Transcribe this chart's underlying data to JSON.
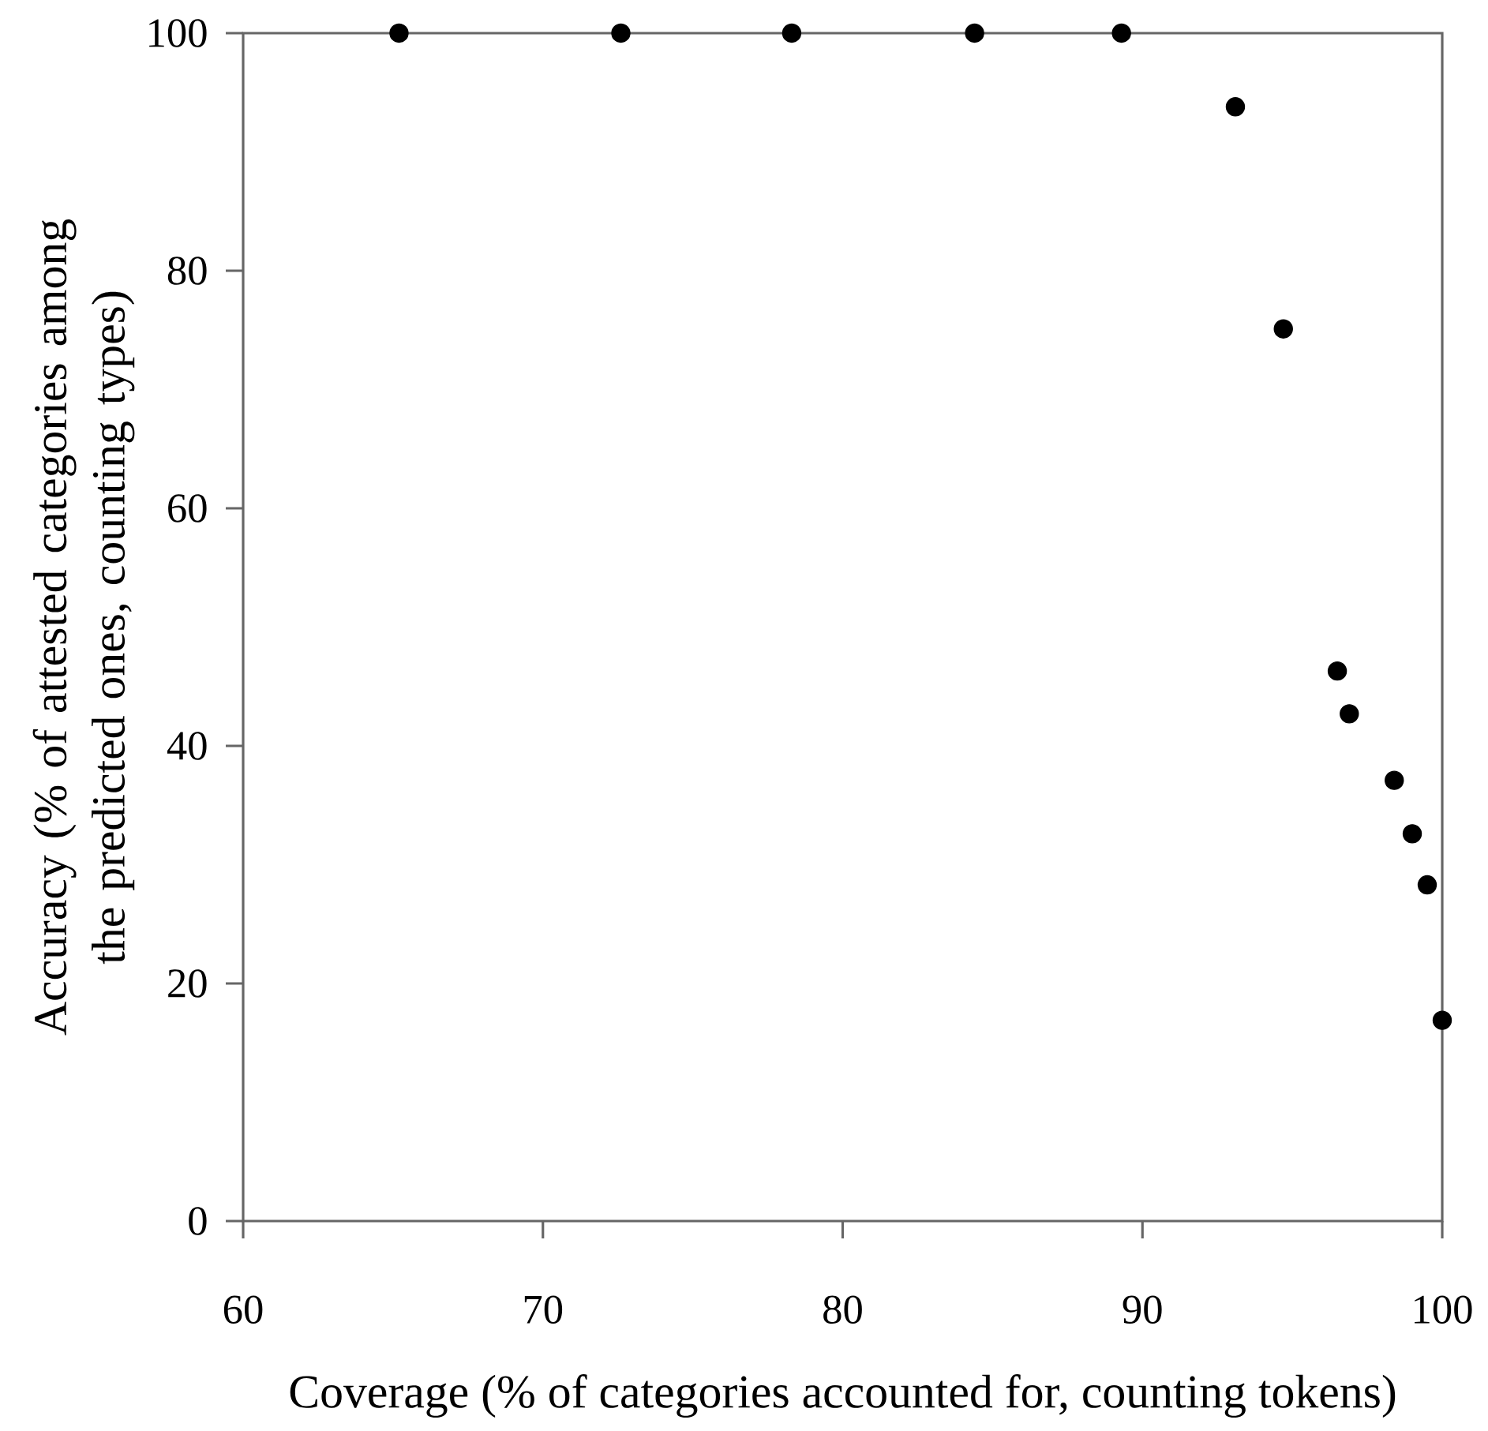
{
  "chart_data": {
    "type": "scatter",
    "xlabel": "Coverage (% of  categories accounted for, counting tokens)",
    "ylabel": "Accuracy (% of attested categories among the predicted ones, counting types)",
    "x": [
      65.2,
      72.6,
      78.3,
      84.4,
      89.3,
      93.1,
      94.7,
      96.5,
      96.9,
      98.4,
      99.0,
      99.5,
      100
    ],
    "series": [
      {
        "color": "#000000",
        "values": [
          100,
          100,
          100,
          100,
          100,
          93.8,
          75.1,
          46.3,
          42.7,
          37.1,
          32.6,
          28.3,
          16.9
        ]
      }
    ],
    "xlim": [
      60,
      100
    ],
    "ylim": [
      0,
      100
    ],
    "xticks": [
      60,
      70,
      80,
      90,
      100
    ],
    "yticks": [
      0,
      20,
      40,
      60,
      80,
      100
    ],
    "grid": false,
    "legend": false
  }
}
